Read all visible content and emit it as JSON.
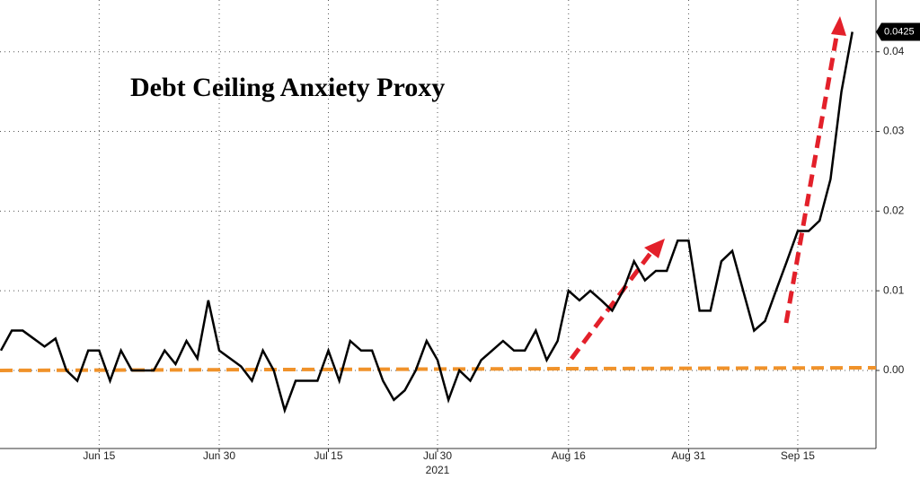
{
  "chart_data": {
    "type": "line",
    "title": "Debt Ceiling Anxiety Proxy",
    "xlabel": "2021",
    "categories": [
      null,
      null,
      null,
      null,
      null,
      null,
      null,
      null,
      null,
      "Jun 15",
      null,
      null,
      null,
      null,
      null,
      null,
      null,
      null,
      null,
      null,
      "Jun 30",
      null,
      null,
      null,
      null,
      null,
      null,
      null,
      null,
      null,
      "Jul 15",
      null,
      null,
      null,
      null,
      null,
      null,
      null,
      null,
      null,
      "Jul 30",
      null,
      null,
      null,
      null,
      null,
      null,
      null,
      null,
      null,
      null,
      null,
      "Aug 16",
      null,
      null,
      null,
      null,
      null,
      null,
      null,
      null,
      null,
      null,
      "Aug 31",
      null,
      null,
      null,
      null,
      null,
      null,
      null,
      null,
      null,
      "Sep 15",
      null,
      null,
      null,
      null,
      null
    ],
    "series": [
      {
        "name": "Debt Ceiling Anxiety Proxy",
        "color": "#000000",
        "values": [
          0.0025,
          0.005,
          0.005,
          0.004,
          0.003,
          0.004,
          0.0,
          -0.0013,
          0.0025,
          0.0025,
          -0.0013,
          0.0025,
          0.0,
          0.0,
          0.0,
          0.0025,
          0.0008,
          0.0037,
          0.0015,
          0.0088,
          0.0025,
          0.0015,
          0.0005,
          -0.0013,
          0.0025,
          0.0,
          -0.005,
          -0.0013,
          -0.0013,
          -0.0013,
          0.0025,
          -0.0013,
          0.0037,
          0.0025,
          0.0025,
          -0.0013,
          -0.0037,
          -0.0025,
          0.0,
          0.0037,
          0.0013,
          -0.0037,
          0.0,
          -0.0013,
          0.0013,
          0.0025,
          0.0037,
          0.0025,
          0.0025,
          0.005,
          0.0013,
          0.0037,
          0.01,
          0.0088,
          0.01,
          0.0088,
          0.0075,
          0.01,
          0.0137,
          0.0113,
          0.0125,
          0.0125,
          0.0163,
          0.0163,
          0.0075,
          0.0075,
          0.0137,
          0.015,
          0.01,
          0.005,
          0.0062,
          0.01,
          0.0137,
          0.0175,
          0.0175,
          0.0188,
          0.024,
          0.035,
          0.0425
        ],
        "value_labels": [
          null,
          null,
          null,
          null,
          null,
          null,
          null,
          null,
          null,
          null,
          null,
          null,
          null,
          null,
          null,
          null,
          null,
          null,
          null,
          null,
          null,
          null,
          null,
          null,
          null,
          null,
          null,
          null,
          null,
          null,
          null,
          null,
          null,
          null,
          null,
          null,
          null,
          null,
          null,
          null,
          null,
          null,
          null,
          null,
          null,
          null,
          null,
          null,
          null,
          null,
          null,
          null,
          null,
          null,
          null,
          null,
          null,
          null,
          null,
          null,
          null,
          null,
          null,
          null,
          null,
          null,
          null,
          null,
          null,
          null,
          null,
          null,
          null,
          null,
          null,
          null,
          null,
          null,
          "0.0425"
        ]
      }
    ],
    "reference_line": {
      "value": 0,
      "color": "#f0922a"
    },
    "ylim": [
      -0.0098,
      0.0465
    ],
    "yticks": [
      {
        "value": 0,
        "label": "0.00"
      },
      0.01,
      0.02,
      0.03,
      0.04
    ],
    "grid": true
  }
}
